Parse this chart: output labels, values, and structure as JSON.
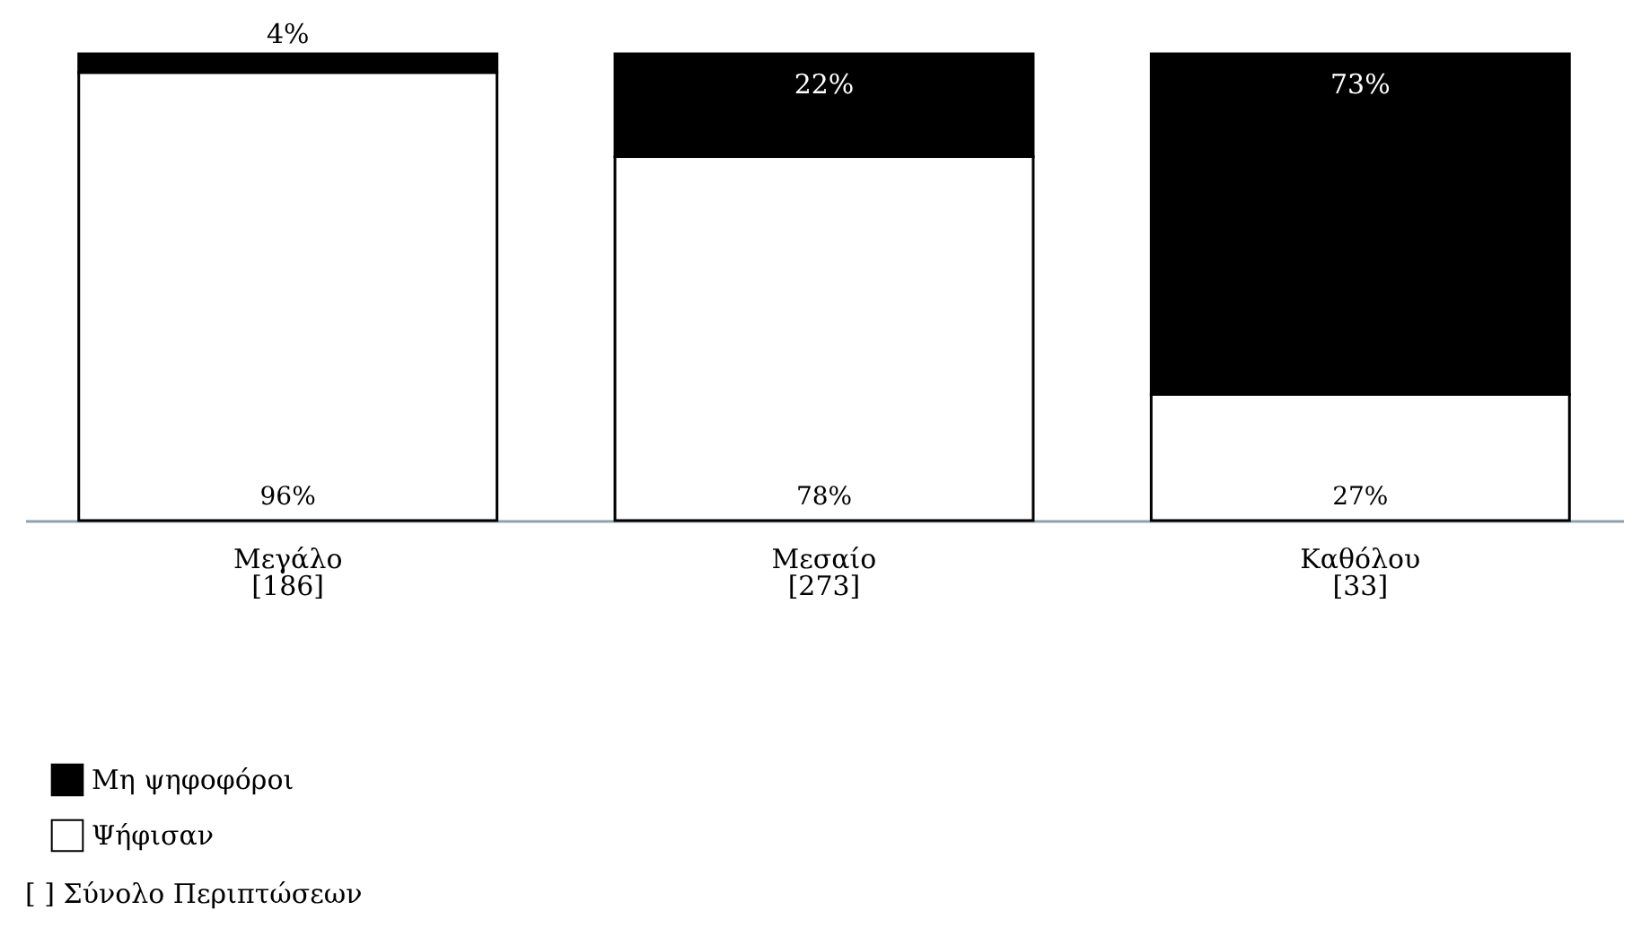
{
  "chart_data": {
    "type": "bar",
    "stacked": true,
    "legend": "bottom left",
    "categories": [
      "Μεγάλο\n[186]",
      "Μεσαίο\n[273]",
      "Καθόλου\n[33]"
    ],
    "series": [
      {
        "name": "Ψήφισαν",
        "color": "#ffffff",
        "values": [
          96,
          78,
          27
        ],
        "value_labels": [
          "96%",
          "78%",
          "27%"
        ]
      },
      {
        "name": "Μη ψηφοφόροι",
        "color": "#000000",
        "values": [
          4,
          22,
          73
        ],
        "value_labels": [
          "4%",
          "22%",
          "73%"
        ]
      }
    ],
    "annotations": [
      "[ ] Σύνολο Περιπτώσεων"
    ]
  }
}
